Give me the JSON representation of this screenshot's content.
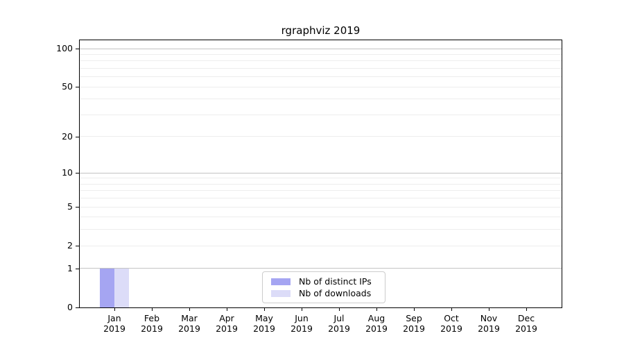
{
  "chart_data": {
    "type": "bar",
    "title": "rgraphviz 2019",
    "categories": [
      "Jan 2019",
      "Feb 2019",
      "Mar 2019",
      "Apr 2019",
      "May 2019",
      "Jun 2019",
      "Jul 2019",
      "Aug 2019",
      "Sep 2019",
      "Oct 2019",
      "Nov 2019",
      "Dec 2019"
    ],
    "series": [
      {
        "name": "Nb of distinct IPs",
        "color": "#a5a5f2",
        "values": [
          1,
          0,
          0,
          0,
          0,
          0,
          0,
          0,
          0,
          0,
          0,
          0
        ]
      },
      {
        "name": "Nb of downloads",
        "color": "#dcdcf8",
        "values": [
          1,
          0,
          0,
          0,
          0,
          0,
          0,
          0,
          0,
          0,
          0,
          0
        ]
      }
    ],
    "xlabel": "",
    "ylabel": "",
    "yscale": "log1p",
    "ylim": [
      0,
      116
    ],
    "y_ticks": [
      0,
      1,
      2,
      5,
      10,
      20,
      50,
      100
    ],
    "y_major_gridlines": [
      1,
      10,
      100
    ],
    "y_minor_gridlines": [
      2,
      3,
      4,
      5,
      6,
      7,
      8,
      9,
      20,
      30,
      40,
      50,
      60,
      70,
      80,
      90
    ],
    "grid": true,
    "legend_position": "lower center"
  }
}
